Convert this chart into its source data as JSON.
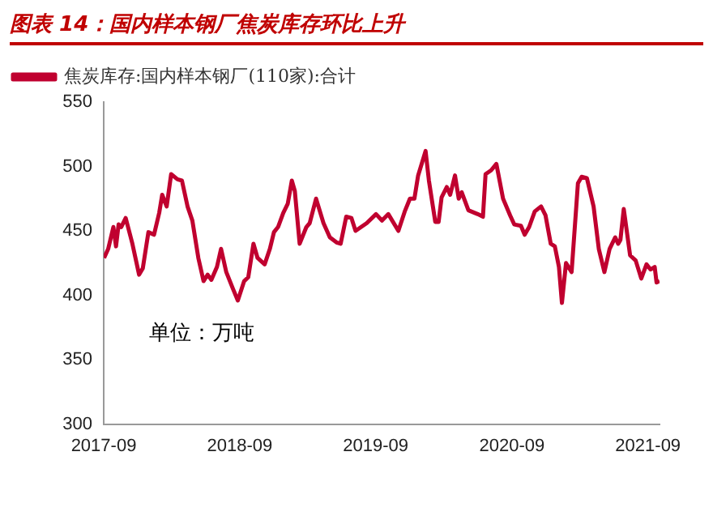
{
  "chart_data": {
    "type": "line",
    "title": "图表 14：国内样本钢厂焦炭库存环比上升",
    "annotations": [
      "单位：万吨"
    ],
    "legend": "top",
    "grid": false,
    "marker": "none",
    "line_style": "solid",
    "xlim": [
      "2017-09-01",
      "2021-10-02"
    ],
    "xticks": [
      "2017-09",
      "2018-09",
      "2019-09",
      "2020-09",
      "2021-09"
    ],
    "ylim": [
      300,
      550
    ],
    "yticks": [
      300,
      350,
      400,
      450,
      500,
      550
    ],
    "series": [
      {
        "name": "焦炭库存:国内样本钢厂(110家):合计",
        "color": "#c0002f",
        "x": [
          "2017-09-02",
          "2017-09-13",
          "2017-09-27",
          "2017-10-04",
          "2017-10-11",
          "2017-10-18",
          "2017-10-30",
          "2017-11-17",
          "2017-12-05",
          "2017-12-15",
          "2017-12-30",
          "2018-01-14",
          "2018-01-28",
          "2018-02-05",
          "2018-02-17",
          "2018-03-01",
          "2018-03-18",
          "2018-03-30",
          "2018-04-14",
          "2018-04-27",
          "2018-05-13",
          "2018-05-27",
          "2018-06-07",
          "2018-06-17",
          "2018-07-02",
          "2018-07-13",
          "2018-07-27",
          "2018-08-14",
          "2018-08-27",
          "2018-09-13",
          "2018-09-24",
          "2018-10-08",
          "2018-10-19",
          "2018-11-07",
          "2018-11-21",
          "2018-12-02",
          "2018-12-13",
          "2018-12-27",
          "2019-01-08",
          "2019-01-19",
          "2019-01-27",
          "2019-02-09",
          "2019-02-27",
          "2019-03-08",
          "2019-03-25",
          "2019-04-14",
          "2019-05-01",
          "2019-05-19",
          "2019-05-30",
          "2019-06-14",
          "2019-06-28",
          "2019-07-09",
          "2019-08-08",
          "2019-09-02",
          "2019-09-18",
          "2019-10-05",
          "2019-11-01",
          "2019-11-18",
          "2019-12-02",
          "2019-12-14",
          "2019-12-24",
          "2020-01-13",
          "2020-01-22",
          "2020-02-08",
          "2020-02-17",
          "2020-02-25",
          "2020-03-10",
          "2020-03-19",
          "2020-04-01",
          "2020-04-11",
          "2020-04-19",
          "2020-05-07",
          "2020-06-01",
          "2020-06-15",
          "2020-06-22",
          "2020-07-07",
          "2020-07-21",
          "2020-08-08",
          "2020-08-27",
          "2020-09-07",
          "2020-09-25",
          "2020-10-05",
          "2020-10-17",
          "2020-11-01",
          "2020-11-18",
          "2020-11-30",
          "2020-12-14",
          "2020-12-25",
          "2021-01-05",
          "2021-01-13",
          "2021-01-24",
          "2021-02-08",
          "2021-02-25",
          "2021-03-07",
          "2021-03-21",
          "2021-04-08",
          "2021-04-22",
          "2021-05-07",
          "2021-05-21",
          "2021-06-05",
          "2021-06-13",
          "2021-06-19",
          "2021-06-28",
          "2021-07-15",
          "2021-07-30",
          "2021-08-14",
          "2021-08-28",
          "2021-09-08",
          "2021-09-19",
          "2021-09-24",
          "2021-10-02"
        ],
        "values": [
          429,
          436,
          453,
          438,
          455,
          453,
          460,
          440,
          416,
          421,
          449,
          447,
          464,
          478,
          469,
          494,
          490,
          489,
          469,
          458,
          429,
          411,
          416,
          412,
          422,
          436,
          418,
          405,
          396,
          411,
          414,
          440,
          429,
          424,
          436,
          449,
          453,
          464,
          471,
          489,
          481,
          440,
          453,
          456,
          475,
          456,
          445,
          441,
          440,
          461,
          460,
          450,
          456,
          463,
          458,
          463,
          450,
          465,
          475,
          475,
          493,
          512,
          489,
          457,
          457,
          476,
          484,
          478,
          493,
          475,
          480,
          466,
          463,
          461,
          494,
          497,
          502,
          475,
          462,
          455,
          454,
          447,
          453,
          465,
          469,
          462,
          440,
          438,
          422,
          394,
          425,
          418,
          487,
          492,
          491,
          469,
          436,
          418,
          436,
          445,
          440,
          443,
          467,
          431,
          427,
          413,
          424,
          420,
          422,
          410,
          411
        ]
      }
    ]
  }
}
